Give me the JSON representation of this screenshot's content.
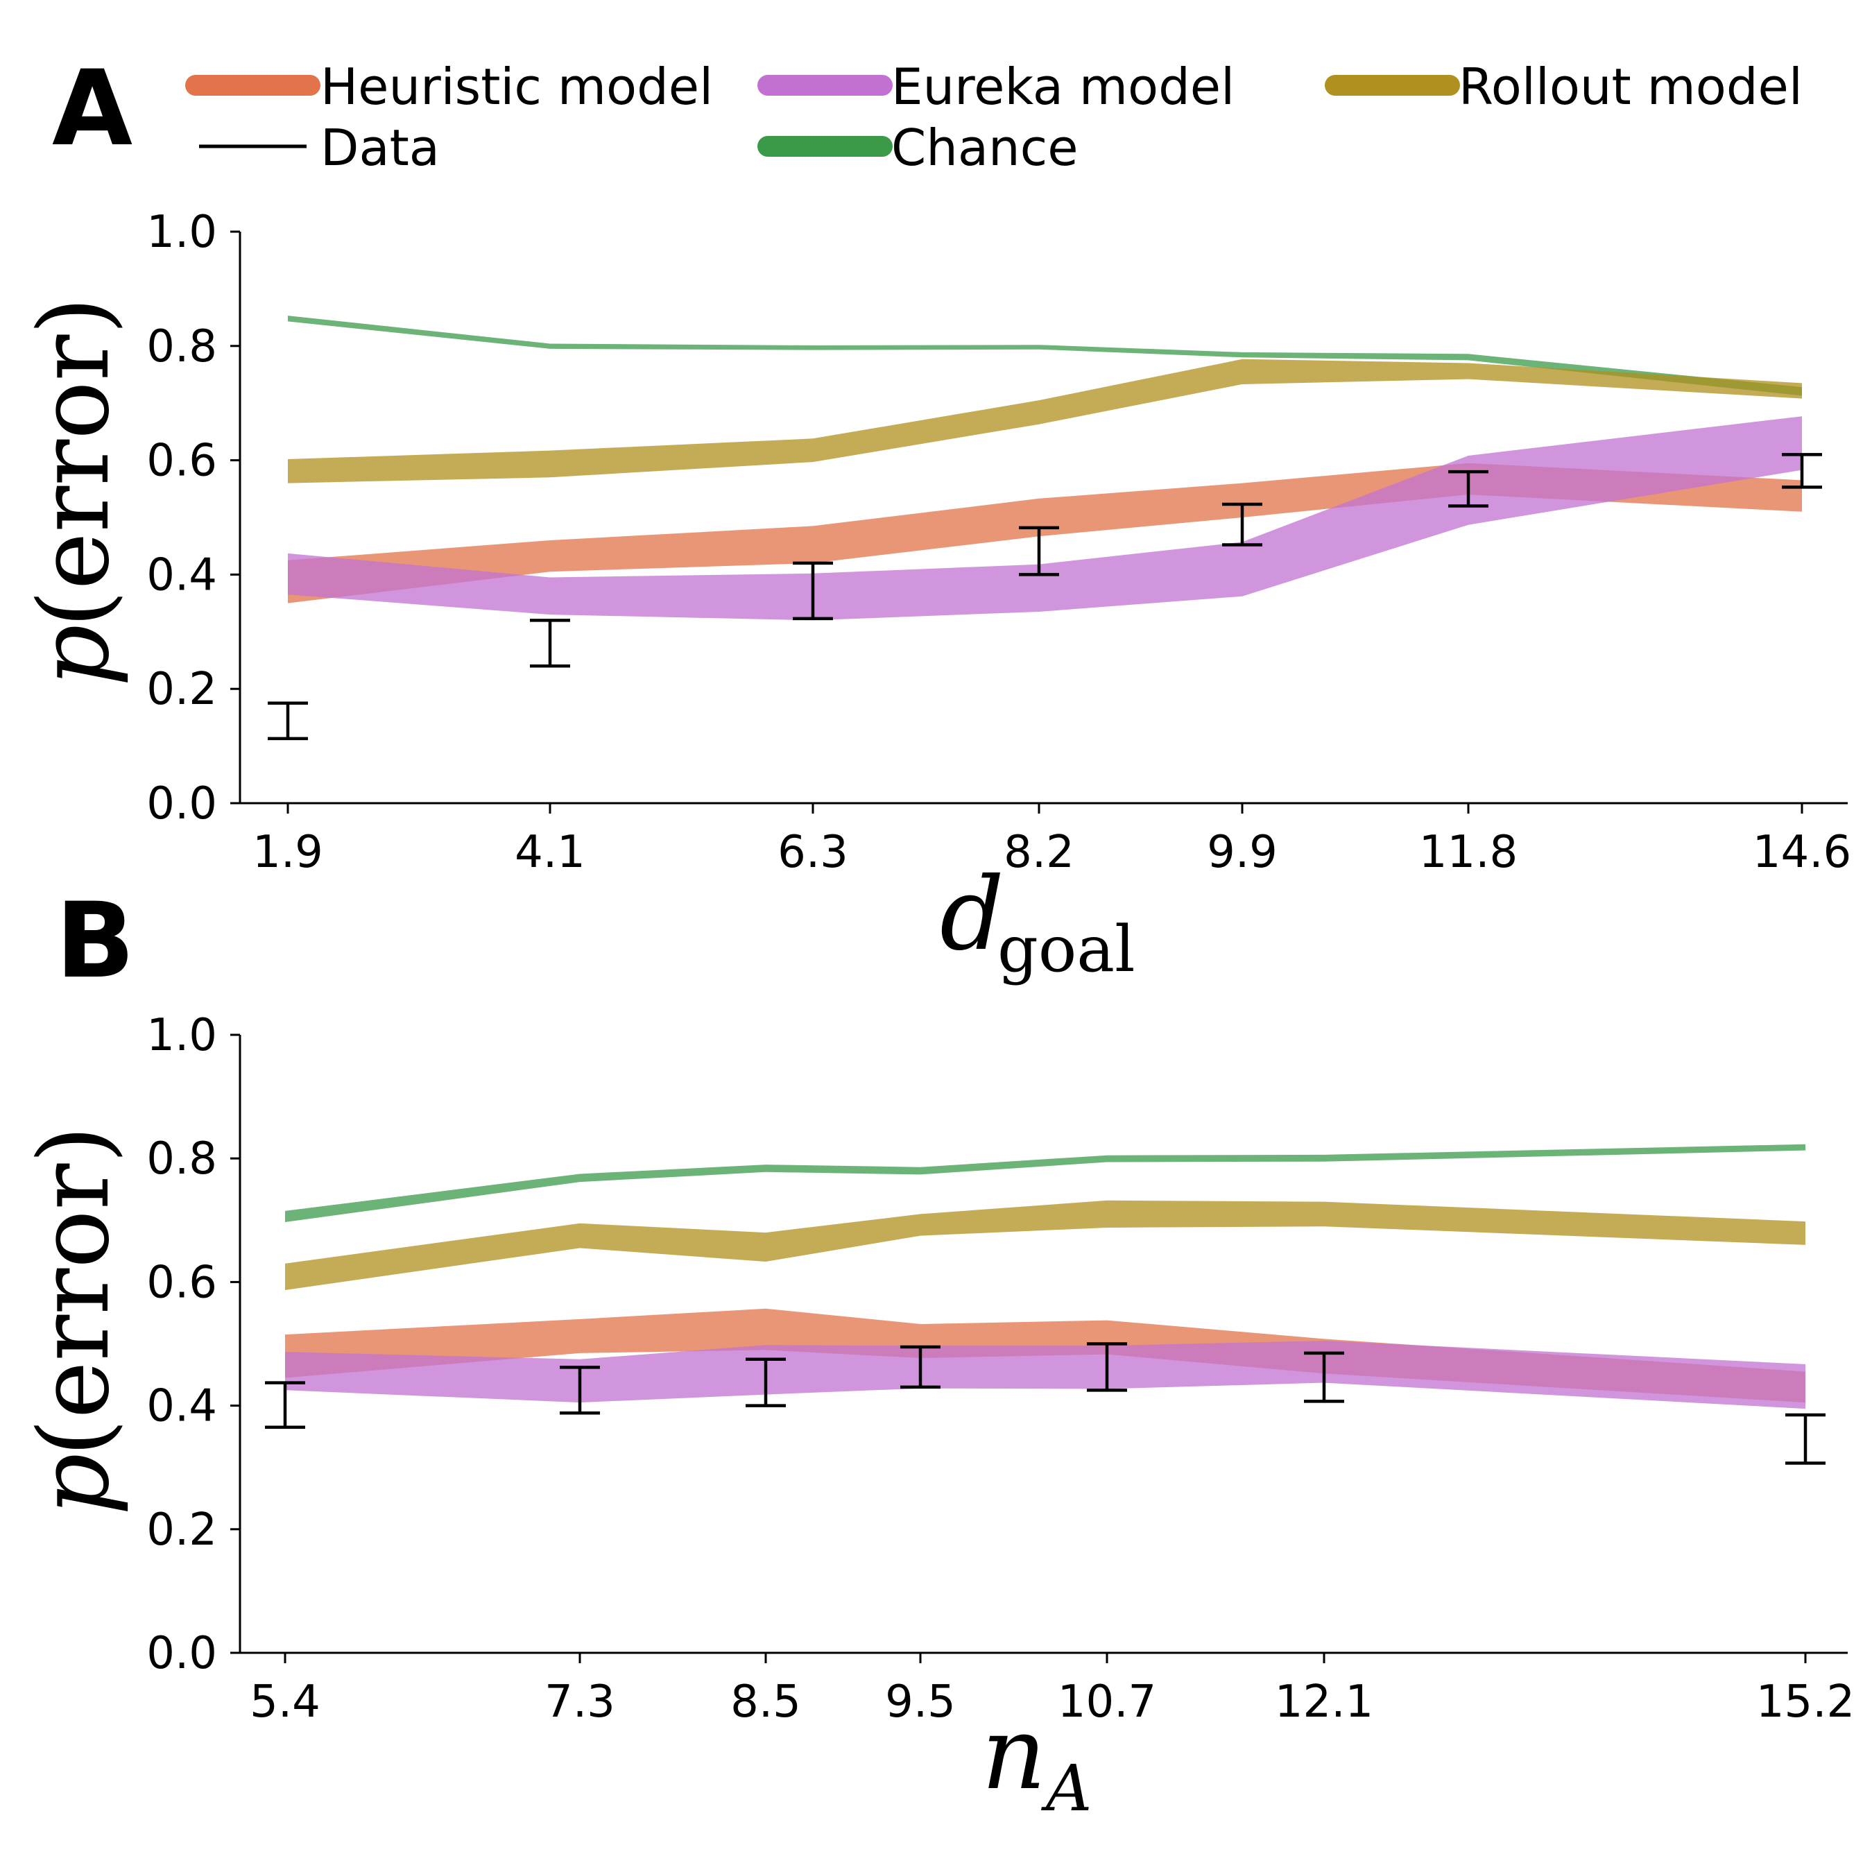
{
  "panels": [
    {
      "letter": "A"
    },
    {
      "letter": "B"
    }
  ],
  "legend": {
    "items": [
      {
        "label": "Heuristic model",
        "color": "#e2734a",
        "kind": "band"
      },
      {
        "label": "Eureka model",
        "color": "#c271d2",
        "kind": "band"
      },
      {
        "label": "Rollout model",
        "color": "#b0901e",
        "kind": "band"
      },
      {
        "label": "Data",
        "color": "#000000",
        "kind": "line"
      },
      {
        "label": "Chance",
        "color": "#3a9a48",
        "kind": "band"
      }
    ]
  },
  "chart_data": [
    {
      "type": "line",
      "panel": "A",
      "xlabel_main": "d",
      "xlabel_sub": "goal",
      "ylabel_p": "p",
      "ylabel_arg": "(error)",
      "x": [
        1.9,
        4.1,
        6.3,
        8.2,
        9.9,
        11.8,
        14.6
      ],
      "x_tick_labels": [
        "1.9",
        "4.1",
        "6.3",
        "8.2",
        "9.9",
        "11.8",
        "14.6"
      ],
      "ylim": [
        0,
        1
      ],
      "y_ticks": [
        0.0,
        0.2,
        0.4,
        0.6,
        0.8,
        1.0
      ],
      "y_tick_labels": [
        "0.0",
        "0.2",
        "0.4",
        "0.6",
        "0.8",
        "1.0"
      ],
      "grid": false,
      "legend_position": "top",
      "series": [
        {
          "name": "Chance",
          "color": "#3a9a48",
          "lower": [
            0.843,
            0.795,
            0.793,
            0.794,
            0.78,
            0.775,
            0.713
          ],
          "upper": [
            0.853,
            0.804,
            0.801,
            0.802,
            0.789,
            0.786,
            0.728
          ]
        },
        {
          "name": "Rollout model",
          "color": "#b0901e",
          "lower": [
            0.56,
            0.57,
            0.597,
            0.663,
            0.733,
            0.742,
            0.708
          ],
          "upper": [
            0.602,
            0.617,
            0.638,
            0.705,
            0.777,
            0.77,
            0.735
          ]
        },
        {
          "name": "Heuristic model",
          "color": "#e2734a",
          "lower": [
            0.35,
            0.405,
            0.42,
            0.467,
            0.5,
            0.54,
            0.51
          ],
          "upper": [
            0.425,
            0.46,
            0.485,
            0.533,
            0.56,
            0.595,
            0.565
          ]
        },
        {
          "name": "Eureka model",
          "color": "#c271d2",
          "lower": [
            0.365,
            0.33,
            0.32,
            0.335,
            0.362,
            0.487,
            0.583
          ],
          "upper": [
            0.437,
            0.395,
            0.402,
            0.418,
            0.457,
            0.608,
            0.677
          ]
        },
        {
          "name": "Data",
          "color": "#000000",
          "kind": "errorbar",
          "lower": [
            0.113,
            0.24,
            0.323,
            0.4,
            0.452,
            0.52,
            0.553
          ],
          "upper": [
            0.175,
            0.32,
            0.42,
            0.482,
            0.523,
            0.58,
            0.61
          ]
        }
      ]
    },
    {
      "type": "line",
      "panel": "B",
      "xlabel_main": "n",
      "xlabel_sub": "A",
      "ylabel_p": "p",
      "ylabel_arg": "(error)",
      "x": [
        5.4,
        7.3,
        8.5,
        9.5,
        10.7,
        12.1,
        15.2
      ],
      "x_tick_labels": [
        "5.4",
        "7.3",
        "8.5",
        "9.5",
        "10.7",
        "12.1",
        "15.2"
      ],
      "ylim": [
        0,
        1
      ],
      "y_ticks": [
        0.0,
        0.2,
        0.4,
        0.6,
        0.8,
        1.0
      ],
      "y_tick_labels": [
        "0.0",
        "0.2",
        "0.4",
        "0.6",
        "0.8",
        "1.0"
      ],
      "grid": false,
      "series": [
        {
          "name": "Chance",
          "color": "#3a9a48",
          "lower": [
            0.697,
            0.762,
            0.778,
            0.774,
            0.794,
            0.795,
            0.813
          ],
          "upper": [
            0.715,
            0.775,
            0.79,
            0.786,
            0.805,
            0.806,
            0.823
          ]
        },
        {
          "name": "Rollout model",
          "color": "#b0901e",
          "lower": [
            0.587,
            0.655,
            0.633,
            0.675,
            0.688,
            0.69,
            0.66
          ],
          "upper": [
            0.63,
            0.695,
            0.68,
            0.71,
            0.732,
            0.73,
            0.698
          ]
        },
        {
          "name": "Heuristic model",
          "color": "#e2734a",
          "lower": [
            0.445,
            0.485,
            0.49,
            0.477,
            0.483,
            0.452,
            0.405
          ],
          "upper": [
            0.515,
            0.54,
            0.557,
            0.532,
            0.538,
            0.508,
            0.455
          ]
        },
        {
          "name": "Eureka model",
          "color": "#c271d2",
          "lower": [
            0.425,
            0.405,
            0.418,
            0.428,
            0.427,
            0.437,
            0.395
          ],
          "upper": [
            0.487,
            0.475,
            0.498,
            0.497,
            0.497,
            0.505,
            0.467
          ]
        },
        {
          "name": "Data",
          "color": "#000000",
          "kind": "errorbar",
          "lower": [
            0.365,
            0.388,
            0.4,
            0.43,
            0.425,
            0.407,
            0.307
          ],
          "upper": [
            0.437,
            0.462,
            0.475,
            0.495,
            0.5,
            0.485,
            0.385
          ]
        }
      ]
    }
  ]
}
